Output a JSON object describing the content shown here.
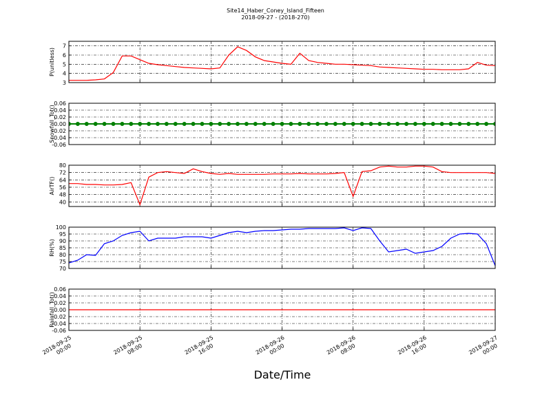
{
  "title": "Site14_Haber_Coney_Island_Fifteen",
  "subtitle": "2018-09-27 - (2018-270)",
  "xlabel": "Date/Time",
  "chart_data": [
    {
      "type": "line",
      "ylabel": "P(unitless)",
      "color": "#ff0000",
      "grid": true,
      "xlim": [
        "2018-09-25 00:00",
        "2018-09-27 00:00"
      ],
      "xticks": [
        "2018-09-25 00:00",
        "2018-09-25 08:00",
        "2018-09-25 16:00",
        "2018-09-26 00:00",
        "2018-09-26 08:00",
        "2018-09-26 16:00",
        "2018-09-27 00:00"
      ],
      "ylim": [
        3,
        7.5
      ],
      "yticks": [
        3,
        4,
        5,
        6,
        7
      ],
      "x": [
        "2018-09-25 00:00",
        "2018-09-25 01:00",
        "2018-09-25 02:00",
        "2018-09-25 03:00",
        "2018-09-25 04:00",
        "2018-09-25 05:00",
        "2018-09-25 06:00",
        "2018-09-25 07:00",
        "2018-09-25 08:00",
        "2018-09-25 09:00",
        "2018-09-25 10:00",
        "2018-09-25 11:00",
        "2018-09-25 12:00",
        "2018-09-25 13:00",
        "2018-09-25 14:00",
        "2018-09-25 15:00",
        "2018-09-25 16:00",
        "2018-09-25 17:00",
        "2018-09-25 18:00",
        "2018-09-25 19:00",
        "2018-09-25 20:00",
        "2018-09-25 21:00",
        "2018-09-25 22:00",
        "2018-09-25 23:00",
        "2018-09-26 00:00",
        "2018-09-26 01:00",
        "2018-09-26 02:00",
        "2018-09-26 03:00",
        "2018-09-26 04:00",
        "2018-09-26 05:00",
        "2018-09-26 06:00",
        "2018-09-26 07:00",
        "2018-09-26 08:00",
        "2018-09-26 09:00",
        "2018-09-26 10:00",
        "2018-09-26 11:00",
        "2018-09-26 12:00",
        "2018-09-26 13:00",
        "2018-09-26 14:00",
        "2018-09-26 15:00",
        "2018-09-26 16:00",
        "2018-09-26 17:00",
        "2018-09-26 18:00",
        "2018-09-26 19:00",
        "2018-09-26 20:00",
        "2018-09-26 21:00",
        "2018-09-26 22:00",
        "2018-09-26 23:00",
        "2018-09-27 00:00"
      ],
      "values": [
        3.25,
        3.25,
        3.25,
        3.3,
        3.4,
        4.1,
        5.9,
        5.9,
        5.5,
        5.1,
        4.95,
        4.85,
        4.75,
        4.65,
        4.6,
        4.55,
        4.5,
        4.6,
        6.0,
        6.9,
        6.5,
        5.8,
        5.4,
        5.25,
        5.1,
        5.0,
        6.2,
        5.4,
        5.2,
        5.1,
        5.0,
        5.0,
        4.95,
        4.9,
        4.85,
        4.7,
        4.65,
        4.6,
        4.55,
        4.5,
        4.45,
        4.45,
        4.4,
        4.4,
        4.4,
        4.5,
        5.2,
        4.9,
        4.85
      ]
    },
    {
      "type": "line",
      "ylabel": "Snowfall_Tot()",
      "color": "#008000",
      "marker": "o",
      "grid": true,
      "xlim": [
        "2018-09-25 00:00",
        "2018-09-27 00:00"
      ],
      "xticks": [
        "2018-09-25 00:00",
        "2018-09-25 08:00",
        "2018-09-25 16:00",
        "2018-09-26 00:00",
        "2018-09-26 08:00",
        "2018-09-26 16:00",
        "2018-09-27 00:00"
      ],
      "ylim": [
        -0.06,
        0.06
      ],
      "yticks": [
        -0.06,
        -0.04,
        -0.02,
        {
          "value": 0,
          "label": "0.00"
        },
        0.02,
        0.04,
        0.06
      ],
      "x": [
        "2018-09-25 00:00",
        "2018-09-25 01:00",
        "2018-09-25 02:00",
        "2018-09-25 03:00",
        "2018-09-25 04:00",
        "2018-09-25 05:00",
        "2018-09-25 06:00",
        "2018-09-25 07:00",
        "2018-09-25 08:00",
        "2018-09-25 09:00",
        "2018-09-25 10:00",
        "2018-09-25 11:00",
        "2018-09-25 12:00",
        "2018-09-25 13:00",
        "2018-09-25 14:00",
        "2018-09-25 15:00",
        "2018-09-25 16:00",
        "2018-09-25 17:00",
        "2018-09-25 18:00",
        "2018-09-25 19:00",
        "2018-09-25 20:00",
        "2018-09-25 21:00",
        "2018-09-25 22:00",
        "2018-09-25 23:00",
        "2018-09-26 00:00",
        "2018-09-26 01:00",
        "2018-09-26 02:00",
        "2018-09-26 03:00",
        "2018-09-26 04:00",
        "2018-09-26 05:00",
        "2018-09-26 06:00",
        "2018-09-26 07:00",
        "2018-09-26 08:00",
        "2018-09-26 09:00",
        "2018-09-26 10:00",
        "2018-09-26 11:00",
        "2018-09-26 12:00",
        "2018-09-26 13:00",
        "2018-09-26 14:00",
        "2018-09-26 15:00",
        "2018-09-26 16:00",
        "2018-09-26 17:00",
        "2018-09-26 18:00",
        "2018-09-26 19:00",
        "2018-09-26 20:00",
        "2018-09-26 21:00",
        "2018-09-26 22:00",
        "2018-09-26 23:00",
        "2018-09-27 00:00"
      ],
      "values": [
        0,
        0,
        0,
        0,
        0,
        0,
        0,
        0,
        0,
        0,
        0,
        0,
        0,
        0,
        0,
        0,
        0,
        0,
        0,
        0,
        0,
        0,
        0,
        0,
        0,
        0,
        0,
        0,
        0,
        0,
        0,
        0,
        0,
        0,
        0,
        0,
        0,
        0,
        0,
        0,
        0,
        0,
        0,
        0,
        0,
        0,
        0,
        0,
        0
      ]
    },
    {
      "type": "line",
      "ylabel": "AirTF()",
      "color": "#ff0000",
      "grid": true,
      "xlim": [
        "2018-09-25 00:00",
        "2018-09-27 00:00"
      ],
      "xticks": [
        "2018-09-25 00:00",
        "2018-09-25 08:00",
        "2018-09-25 16:00",
        "2018-09-26 00:00",
        "2018-09-26 08:00",
        "2018-09-26 16:00",
        "2018-09-27 00:00"
      ],
      "ylim": [
        35,
        80
      ],
      "yticks": [
        40,
        48,
        56,
        64,
        72,
        80
      ],
      "x": [
        "2018-09-25 00:00",
        "2018-09-25 01:00",
        "2018-09-25 02:00",
        "2018-09-25 03:00",
        "2018-09-25 04:00",
        "2018-09-25 05:00",
        "2018-09-25 06:00",
        "2018-09-25 07:00",
        "2018-09-25 08:00",
        "2018-09-25 09:00",
        "2018-09-25 10:00",
        "2018-09-25 11:00",
        "2018-09-25 12:00",
        "2018-09-25 13:00",
        "2018-09-25 14:00",
        "2018-09-25 15:00",
        "2018-09-25 16:00",
        "2018-09-25 17:00",
        "2018-09-25 18:00",
        "2018-09-25 19:00",
        "2018-09-25 20:00",
        "2018-09-25 21:00",
        "2018-09-25 22:00",
        "2018-09-25 23:00",
        "2018-09-26 00:00",
        "2018-09-26 01:00",
        "2018-09-26 02:00",
        "2018-09-26 03:00",
        "2018-09-26 04:00",
        "2018-09-26 05:00",
        "2018-09-26 06:00",
        "2018-09-26 07:00",
        "2018-09-26 08:00",
        "2018-09-26 09:00",
        "2018-09-26 10:00",
        "2018-09-26 11:00",
        "2018-09-26 12:00",
        "2018-09-26 13:00",
        "2018-09-26 14:00",
        "2018-09-26 15:00",
        "2018-09-26 16:00",
        "2018-09-26 17:00",
        "2018-09-26 18:00",
        "2018-09-26 19:00",
        "2018-09-26 20:00",
        "2018-09-26 21:00",
        "2018-09-26 22:00",
        "2018-09-26 23:00",
        "2018-09-27 00:00"
      ],
      "values": [
        60,
        60,
        59,
        59,
        58.5,
        58.5,
        59,
        61,
        37,
        67,
        72,
        73,
        72,
        71,
        76,
        73,
        71,
        70,
        71,
        70,
        70,
        70,
        70,
        70.5,
        70.5,
        70.5,
        71,
        70.5,
        70.5,
        70.5,
        71,
        72,
        46,
        73,
        74,
        78,
        79,
        78,
        78,
        79,
        79,
        78,
        73,
        72,
        72,
        72,
        72,
        72,
        71
      ]
    },
    {
      "type": "line",
      "ylabel": "RH(%)",
      "color": "#0000ff",
      "grid": true,
      "xlim": [
        "2018-09-25 00:00",
        "2018-09-27 00:00"
      ],
      "xticks": [
        "2018-09-25 00:00",
        "2018-09-25 08:00",
        "2018-09-25 16:00",
        "2018-09-26 00:00",
        "2018-09-26 08:00",
        "2018-09-26 16:00",
        "2018-09-27 00:00"
      ],
      "ylim": [
        70,
        100
      ],
      "yticks": [
        70,
        75,
        80,
        85,
        90,
        95,
        100
      ],
      "x": [
        "2018-09-25 00:00",
        "2018-09-25 01:00",
        "2018-09-25 02:00",
        "2018-09-25 03:00",
        "2018-09-25 04:00",
        "2018-09-25 05:00",
        "2018-09-25 06:00",
        "2018-09-25 07:00",
        "2018-09-25 08:00",
        "2018-09-25 09:00",
        "2018-09-25 10:00",
        "2018-09-25 11:00",
        "2018-09-25 12:00",
        "2018-09-25 13:00",
        "2018-09-25 14:00",
        "2018-09-25 15:00",
        "2018-09-25 16:00",
        "2018-09-25 17:00",
        "2018-09-25 18:00",
        "2018-09-25 19:00",
        "2018-09-25 20:00",
        "2018-09-25 21:00",
        "2018-09-25 22:00",
        "2018-09-25 23:00",
        "2018-09-26 00:00",
        "2018-09-26 01:00",
        "2018-09-26 02:00",
        "2018-09-26 03:00",
        "2018-09-26 04:00",
        "2018-09-26 05:00",
        "2018-09-26 06:00",
        "2018-09-26 07:00",
        "2018-09-26 08:00",
        "2018-09-26 09:00",
        "2018-09-26 10:00",
        "2018-09-26 11:00",
        "2018-09-26 12:00",
        "2018-09-26 13:00",
        "2018-09-26 14:00",
        "2018-09-26 15:00",
        "2018-09-26 16:00",
        "2018-09-26 17:00",
        "2018-09-26 18:00",
        "2018-09-26 19:00",
        "2018-09-26 20:00",
        "2018-09-26 21:00",
        "2018-09-26 22:00",
        "2018-09-26 23:00",
        "2018-09-27 00:00"
      ],
      "values": [
        74,
        76,
        80,
        79.5,
        88,
        90,
        94,
        96,
        97,
        90,
        92,
        92,
        92,
        93,
        93,
        93,
        92,
        94,
        96,
        97,
        96,
        97,
        97.5,
        97.5,
        98,
        98.5,
        98.5,
        99,
        99,
        99,
        99,
        99.5,
        97.5,
        99.5,
        99,
        90,
        82,
        83,
        84,
        81,
        82,
        83,
        86,
        92,
        95,
        95.5,
        95,
        88,
        72
      ]
    },
    {
      "type": "line",
      "ylabel": "Rainfall_Tot()",
      "color": "#ff0000",
      "grid": true,
      "xlim": [
        "2018-09-25 00:00",
        "2018-09-27 00:00"
      ],
      "xticks": [
        "2018-09-25 00:00",
        "2018-09-25 08:00",
        "2018-09-25 16:00",
        "2018-09-26 00:00",
        "2018-09-26 08:00",
        "2018-09-26 16:00",
        "2018-09-27 00:00"
      ],
      "ylim": [
        -0.06,
        0.06
      ],
      "yticks": [
        -0.06,
        -0.04,
        -0.02,
        {
          "value": 0,
          "label": "0.00"
        },
        0.02,
        0.04,
        0.06
      ],
      "x": [
        "2018-09-25 00:00",
        "2018-09-25 01:00",
        "2018-09-25 02:00",
        "2018-09-25 03:00",
        "2018-09-25 04:00",
        "2018-09-25 05:00",
        "2018-09-25 06:00",
        "2018-09-25 07:00",
        "2018-09-25 08:00",
        "2018-09-25 09:00",
        "2018-09-25 10:00",
        "2018-09-25 11:00",
        "2018-09-25 12:00",
        "2018-09-25 13:00",
        "2018-09-25 14:00",
        "2018-09-25 15:00",
        "2018-09-25 16:00",
        "2018-09-25 17:00",
        "2018-09-25 18:00",
        "2018-09-25 19:00",
        "2018-09-25 20:00",
        "2018-09-25 21:00",
        "2018-09-25 22:00",
        "2018-09-25 23:00",
        "2018-09-26 00:00",
        "2018-09-26 01:00",
        "2018-09-26 02:00",
        "2018-09-26 03:00",
        "2018-09-26 04:00",
        "2018-09-26 05:00",
        "2018-09-26 06:00",
        "2018-09-26 07:00",
        "2018-09-26 08:00",
        "2018-09-26 09:00",
        "2018-09-26 10:00",
        "2018-09-26 11:00",
        "2018-09-26 12:00",
        "2018-09-26 13:00",
        "2018-09-26 14:00",
        "2018-09-26 15:00",
        "2018-09-26 16:00",
        "2018-09-26 17:00",
        "2018-09-26 18:00",
        "2018-09-26 19:00",
        "2018-09-26 20:00",
        "2018-09-26 21:00",
        "2018-09-26 22:00",
        "2018-09-26 23:00",
        "2018-09-27 00:00"
      ],
      "values": [
        0,
        0,
        0,
        0,
        0,
        0,
        0,
        0,
        0,
        0,
        0,
        0,
        0,
        0,
        0,
        0,
        0,
        0,
        0,
        0,
        0,
        0,
        0,
        0,
        0,
        0,
        0,
        0,
        0,
        0,
        0,
        0,
        0,
        0,
        0,
        0,
        0,
        0,
        0,
        0,
        0,
        0,
        0,
        0,
        0,
        0,
        0,
        0,
        0
      ]
    }
  ]
}
